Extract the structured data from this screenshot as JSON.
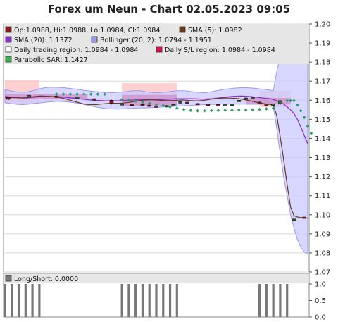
{
  "title": "Forex um Neun - Chart 02.05.2023 09:05",
  "colors": {
    "panel_bg": "#ffffff",
    "legend_bg": "#e6e6e6",
    "grid": "#d8d8d8",
    "candle_up": "#2f6b2f",
    "candle_down": "#8b1a1a",
    "sma5": "#6b3a1a",
    "sma20": "#8b2fc9",
    "bollinger_fill": "#c9c9ff",
    "bollinger_stroke": "#9a9aee",
    "daily_trading": "#ffc8c8",
    "daily_sl": "#e0104a",
    "sar": "#2e9e6a",
    "longshort": "#777777"
  },
  "chart_data": [
    {
      "type": "line",
      "name": "price",
      "ylim": [
        1.07,
        1.2
      ],
      "yticks": [
        "1.20",
        "1.19",
        "1.18",
        "1.17",
        "1.16",
        "1.15",
        "1.14",
        "1.13",
        "1.12",
        "1.11",
        "1.10",
        "1.09",
        "1.08",
        "1.07"
      ],
      "legend": [
        {
          "label": "Op:1.0988, Hi:1.0988, Lo:1.0984, Cl:1.0984",
          "color": "#8b1a1a"
        },
        {
          "label": "SMA (5): 1.0982",
          "color": "#6b3a1a"
        },
        {
          "label": "SMA (20): 1.1372",
          "color": "#8b2fc9"
        },
        {
          "label": "Bollinger (20, 2): 1.0794 - 1.1951",
          "color": "#9a9aee"
        },
        {
          "label": "Daily trading region: 1.0984 - 1.0984",
          "color": "#ffffff"
        },
        {
          "label": "Daily S/L region: 1.0984 - 1.0984",
          "color": "#e0104a"
        },
        {
          "label": "Parabolic SAR: 1.1427",
          "color": "#3cb34a"
        }
      ],
      "bollinger_upper": [
        1.1655,
        1.1652,
        1.1648,
        1.1645,
        1.1643,
        1.1642,
        1.1643,
        1.1646,
        1.165,
        1.1655,
        1.166,
        1.1664,
        1.1666,
        1.1668,
        1.1668,
        1.1668,
        1.1667,
        1.1666,
        1.1664,
        1.1662,
        1.166,
        1.1658,
        1.1655,
        1.1652,
        1.165,
        1.1648,
        1.1646,
        1.1645,
        1.1643,
        1.1642,
        1.1641,
        1.164,
        1.1641,
        1.1642,
        1.1643,
        1.1645,
        1.1647,
        1.1649,
        1.165,
        1.165,
        1.1648,
        1.1645,
        1.1643,
        1.1641,
        1.164,
        1.164,
        1.1642,
        1.1644,
        1.1646,
        1.1648,
        1.165,
        1.165,
        1.165,
        1.1648,
        1.1646,
        1.1644,
        1.1642,
        1.1641,
        1.164,
        1.1642,
        1.1645,
        1.1648,
        1.1652,
        1.1655,
        1.1658,
        1.166,
        1.1662,
        1.1664,
        1.1665,
        1.1666,
        1.1666,
        1.1665,
        1.1664,
        1.1662,
        1.166,
        1.1658,
        1.1656,
        1.1654,
        1.165,
        1.175,
        1.183,
        1.188,
        1.191,
        1.193,
        1.194,
        1.195,
        1.1953,
        1.1952,
        1.1951
      ],
      "bollinger_lower": [
        1.1588,
        1.1585,
        1.1582,
        1.158,
        1.1578,
        1.1577,
        1.1578,
        1.158,
        1.1582,
        1.1584,
        1.1586,
        1.1588,
        1.159,
        1.1592,
        1.1593,
        1.1594,
        1.1594,
        1.1593,
        1.1592,
        1.159,
        1.1588,
        1.1585,
        1.1582,
        1.1578,
        1.1574,
        1.157,
        1.1566,
        1.1563,
        1.156,
        1.1558,
        1.1556,
        1.1555,
        1.1554,
        1.1554,
        1.1555,
        1.1556,
        1.1557,
        1.1558,
        1.1559,
        1.156,
        1.156,
        1.156,
        1.1561,
        1.1562,
        1.1563,
        1.1564,
        1.1565,
        1.1566,
        1.1567,
        1.1568,
        1.1569,
        1.157,
        1.1571,
        1.1572,
        1.1573,
        1.1574,
        1.1575,
        1.1576,
        1.1577,
        1.1578,
        1.1578,
        1.1578,
        1.1579,
        1.158,
        1.158,
        1.158,
        1.158,
        1.158,
        1.158,
        1.158,
        1.158,
        1.158,
        1.158,
        1.158,
        1.158,
        1.158,
        1.158,
        1.158,
        1.157,
        1.145,
        1.132,
        1.12,
        1.11,
        1.1,
        1.093,
        1.087,
        1.083,
        1.0805,
        1.0794
      ],
      "sma20": [
        1.162,
        1.1618,
        1.1616,
        1.1615,
        1.1613,
        1.1612,
        1.1612,
        1.1613,
        1.1615,
        1.1617,
        1.1619,
        1.162,
        1.162,
        1.162,
        1.162,
        1.1619,
        1.1618,
        1.1617,
        1.1615,
        1.1613,
        1.1611,
        1.1609,
        1.1607,
        1.1605,
        1.1603,
        1.1601,
        1.16,
        1.1599,
        1.1598,
        1.1597,
        1.1597,
        1.1597,
        1.1597,
        1.1597,
        1.1598,
        1.1599,
        1.16,
        1.1601,
        1.1602,
        1.1603,
        1.1603,
        1.1603,
        1.1603,
        1.1603,
        1.1603,
        1.1603,
        1.1604,
        1.1605,
        1.1606,
        1.1607,
        1.1608,
        1.1608,
        1.1608,
        1.1608,
        1.1608,
        1.1608,
        1.1607,
        1.1606,
        1.1606,
        1.1607,
        1.1608,
        1.161,
        1.1612,
        1.1614,
        1.1616,
        1.1618,
        1.162,
        1.1621,
        1.1622,
        1.1622,
        1.1621,
        1.162,
        1.1618,
        1.1616,
        1.1614,
        1.1612,
        1.161,
        1.1608,
        1.1604,
        1.1598,
        1.159,
        1.158,
        1.1565,
        1.155,
        1.153,
        1.15,
        1.146,
        1.1415,
        1.1372
      ],
      "sma5": [
        1.1615,
        1.1615,
        1.1614,
        1.1614,
        1.1613,
        1.1613,
        1.1614,
        1.1616,
        1.1618,
        1.162,
        1.1622,
        1.1622,
        1.1621,
        1.162,
        1.1619,
        1.1617,
        1.1614,
        1.161,
        1.1605,
        1.16,
        1.1595,
        1.159,
        1.1585,
        1.158,
        1.1578,
        1.1577,
        1.1577,
        1.1578,
        1.158,
        1.1582,
        1.1583,
        1.1584,
        1.1584,
        1.1584,
        1.1585,
        1.1587,
        1.1589,
        1.1592,
        1.1595,
        1.1598,
        1.16,
        1.1601,
        1.1602,
        1.1602,
        1.1601,
        1.16,
        1.1599,
        1.1598,
        1.1598,
        1.1599,
        1.16,
        1.1601,
        1.1601,
        1.16,
        1.1598,
        1.1597,
        1.1597,
        1.1598,
        1.16,
        1.1603,
        1.1606,
        1.1608,
        1.161,
        1.1611,
        1.1612,
        1.1612,
        1.1611,
        1.161,
        1.1608,
        1.1605,
        1.1602,
        1.1598,
        1.1594,
        1.159,
        1.1586,
        1.1583,
        1.158,
        1.1578,
        1.1575,
        1.152,
        1.141,
        1.129,
        1.116,
        1.104,
        1.0995,
        1.0988,
        1.0985,
        1.0983,
        1.0982
      ],
      "candles": [
        {
          "i": 1,
          "o": 1.1615,
          "c": 1.1605,
          "h": 1.162,
          "l": 1.16
        },
        {
          "i": 7,
          "o": 1.162,
          "c": 1.1625,
          "h": 1.1628,
          "l": 1.1616
        },
        {
          "i": 15,
          "o": 1.1622,
          "c": 1.1618,
          "h": 1.1625,
          "l": 1.1615
        },
        {
          "i": 21,
          "o": 1.1612,
          "c": 1.1618,
          "h": 1.162,
          "l": 1.161
        },
        {
          "i": 26,
          "o": 1.1608,
          "c": 1.1604,
          "h": 1.161,
          "l": 1.1598
        },
        {
          "i": 31,
          "o": 1.16,
          "c": 1.1585,
          "h": 1.1603,
          "l": 1.1578
        },
        {
          "i": 34,
          "o": 1.158,
          "c": 1.1582,
          "h": 1.1584,
          "l": 1.1578
        },
        {
          "i": 37,
          "o": 1.158,
          "c": 1.1578,
          "h": 1.1582,
          "l": 1.1574
        },
        {
          "i": 40,
          "o": 1.1578,
          "c": 1.1575,
          "h": 1.158,
          "l": 1.1572
        },
        {
          "i": 42,
          "o": 1.1575,
          "c": 1.1572,
          "h": 1.1578,
          "l": 1.1568
        },
        {
          "i": 44,
          "o": 1.157,
          "c": 1.1565,
          "h": 1.1573,
          "l": 1.1562
        },
        {
          "i": 47,
          "o": 1.1566,
          "c": 1.1572,
          "h": 1.1575,
          "l": 1.1563
        },
        {
          "i": 49,
          "o": 1.1572,
          "c": 1.1578,
          "h": 1.158,
          "l": 1.157
        },
        {
          "i": 51,
          "o": 1.1585,
          "c": 1.1593,
          "h": 1.1596,
          "l": 1.1582
        },
        {
          "i": 53,
          "o": 1.159,
          "c": 1.1588,
          "h": 1.1593,
          "l": 1.1585
        },
        {
          "i": 56,
          "o": 1.1583,
          "c": 1.1582,
          "h": 1.1585,
          "l": 1.158
        },
        {
          "i": 59,
          "o": 1.158,
          "c": 1.1579,
          "h": 1.1582,
          "l": 1.1577
        },
        {
          "i": 62,
          "o": 1.1578,
          "c": 1.1576,
          "h": 1.158,
          "l": 1.1574
        },
        {
          "i": 64,
          "o": 1.1575,
          "c": 1.1577,
          "h": 1.1579,
          "l": 1.1573
        },
        {
          "i": 66,
          "o": 1.1578,
          "c": 1.158,
          "h": 1.1582,
          "l": 1.1576
        },
        {
          "i": 68,
          "o": 1.1595,
          "c": 1.16,
          "h": 1.1602,
          "l": 1.1593
        },
        {
          "i": 70,
          "o": 1.1605,
          "c": 1.1612,
          "h": 1.1615,
          "l": 1.1603
        },
        {
          "i": 72,
          "o": 1.1612,
          "c": 1.1615,
          "h": 1.1618,
          "l": 1.161
        },
        {
          "i": 74,
          "o": 1.159,
          "c": 1.1582,
          "h": 1.1593,
          "l": 1.158
        },
        {
          "i": 76,
          "o": 1.158,
          "c": 1.1572,
          "h": 1.1583,
          "l": 1.1568
        },
        {
          "i": 78,
          "o": 1.1575,
          "c": 1.158,
          "h": 1.1583,
          "l": 1.1572
        },
        {
          "i": 80,
          "o": 1.158,
          "c": 1.1598,
          "h": 1.16,
          "l": 1.1578
        },
        {
          "i": 84,
          "o": 1.0975,
          "c": 1.0978,
          "h": 1.098,
          "l": 1.0973
        },
        {
          "i": 87,
          "o": 1.0988,
          "c": 1.0984,
          "h": 1.0988,
          "l": 1.0984
        }
      ],
      "sar_dots": [
        {
          "i": 15,
          "v": 1.1632
        },
        {
          "i": 17,
          "v": 1.1632
        },
        {
          "i": 19,
          "v": 1.1632
        },
        {
          "i": 21,
          "v": 1.1632
        },
        {
          "i": 23,
          "v": 1.1632
        },
        {
          "i": 25,
          "v": 1.1632
        },
        {
          "i": 27,
          "v": 1.1632
        },
        {
          "i": 29,
          "v": 1.1632
        },
        {
          "i": 34,
          "v": 1.1603
        },
        {
          "i": 36,
          "v": 1.16
        },
        {
          "i": 38,
          "v": 1.1595
        },
        {
          "i": 40,
          "v": 1.159
        },
        {
          "i": 42,
          "v": 1.1584
        },
        {
          "i": 44,
          "v": 1.1578
        },
        {
          "i": 46,
          "v": 1.1572
        },
        {
          "i": 48,
          "v": 1.1565
        },
        {
          "i": 50,
          "v": 1.1558
        },
        {
          "i": 52,
          "v": 1.1552
        },
        {
          "i": 54,
          "v": 1.1547
        },
        {
          "i": 56,
          "v": 1.1545
        },
        {
          "i": 58,
          "v": 1.1545
        },
        {
          "i": 60,
          "v": 1.1546
        },
        {
          "i": 62,
          "v": 1.1547
        },
        {
          "i": 64,
          "v": 1.1548
        },
        {
          "i": 66,
          "v": 1.1548
        },
        {
          "i": 68,
          "v": 1.1549
        },
        {
          "i": 70,
          "v": 1.1549
        },
        {
          "i": 72,
          "v": 1.155
        },
        {
          "i": 74,
          "v": 1.1552
        },
        {
          "i": 76,
          "v": 1.1555
        },
        {
          "i": 78,
          "v": 1.1558
        },
        {
          "i": 82,
          "v": 1.1598
        },
        {
          "i": 83,
          "v": 1.1598
        },
        {
          "i": 84,
          "v": 1.1598
        },
        {
          "i": 85,
          "v": 1.1575
        },
        {
          "i": 86,
          "v": 1.1545
        },
        {
          "i": 87,
          "v": 1.151
        },
        {
          "i": 88,
          "v": 1.1465
        },
        {
          "i": 89,
          "v": 1.1427
        }
      ],
      "daily_trading_regions": [
        {
          "i0": 0,
          "i1": 10,
          "y0": 1.158,
          "y1": 1.1705
        },
        {
          "i0": 34,
          "i1": 50,
          "y0": 1.1575,
          "y1": 1.169
        },
        {
          "i0": 74,
          "i1": 83,
          "y0": 1.1565,
          "y1": 1.165
        }
      ],
      "daily_sl_regions": [
        {
          "i0": 0,
          "i1": 24,
          "y0": 1.1605,
          "y1": 1.1632
        },
        {
          "i0": 34,
          "i1": 50,
          "y0": 1.157,
          "y1": 1.1628
        },
        {
          "i0": 70,
          "i1": 83,
          "y0": 1.1578,
          "y1": 1.1612
        }
      ]
    },
    {
      "type": "bar",
      "name": "Long/Short",
      "legend_label": "Long/Short: 0.0000",
      "ylim": [
        0,
        1
      ],
      "yticks": [
        "1.0",
        "0.5",
        "0.0"
      ],
      "bars": [
        {
          "i0": 0,
          "i1": 10,
          "v": 1
        },
        {
          "i0": 34,
          "i1": 50,
          "v": 1
        },
        {
          "i0": 74,
          "i1": 83,
          "v": 1
        }
      ]
    }
  ]
}
